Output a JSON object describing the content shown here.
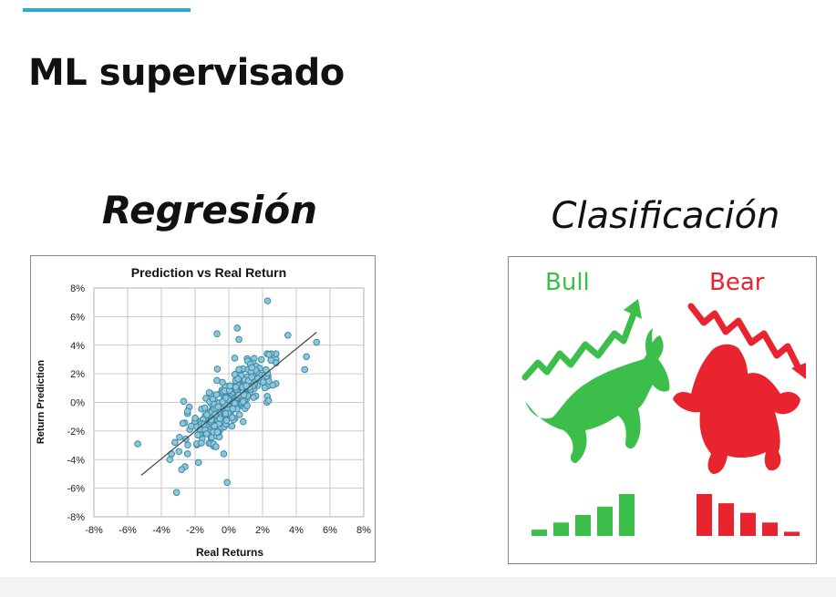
{
  "slide": {
    "title": "ML supervisado",
    "accent_color": "#29a9e0"
  },
  "regression": {
    "heading": "Regresión"
  },
  "classification": {
    "heading": "Clasificación",
    "bull": {
      "label": "Bull",
      "color": "#3cbf4a"
    },
    "bear": {
      "label": "Bear",
      "color": "#e8242f"
    },
    "bull_bars_relative": [
      0.15,
      0.32,
      0.5,
      0.7,
      1.0
    ],
    "bear_bars_relative": [
      1.0,
      0.78,
      0.55,
      0.32,
      0.1
    ]
  },
  "chart_data": {
    "type": "scatter",
    "title": "Prediction vs Real Return",
    "xlabel": "Real Returns",
    "ylabel": "Return Prediction",
    "xlim": [
      -8,
      8
    ],
    "ylim": [
      -8,
      8
    ],
    "x_ticks": [
      "-8%",
      "-6%",
      "-4%",
      "-2%",
      "0%",
      "2%",
      "4%",
      "6%",
      "8%"
    ],
    "y_ticks": [
      "8%",
      "6%",
      "4%",
      "2%",
      "0%",
      "-2%",
      "-4%",
      "-6%",
      "-8%"
    ],
    "grid": true,
    "marker_color": "#8fc6da",
    "marker_edge": "#3b8aa8",
    "trendline": {
      "x": [
        -5.2,
        5.2
      ],
      "y": [
        -5.1,
        4.9
      ]
    },
    "outliers": [
      {
        "x": 2.3,
        "y": 7.1
      },
      {
        "x": 0.5,
        "y": 5.2
      },
      {
        "x": -0.7,
        "y": 4.8
      },
      {
        "x": 0.6,
        "y": 4.4
      },
      {
        "x": 3.5,
        "y": 4.7
      },
      {
        "x": 5.2,
        "y": 4.2
      },
      {
        "x": 4.6,
        "y": 3.2
      },
      {
        "x": 4.5,
        "y": 2.3
      },
      {
        "x": 2.6,
        "y": 1.2
      },
      {
        "x": -5.4,
        "y": -2.9
      },
      {
        "x": -3.1,
        "y": -6.3
      },
      {
        "x": -0.1,
        "y": -5.6
      },
      {
        "x": -3.5,
        "y": -4.0
      },
      {
        "x": -2.6,
        "y": -4.5
      },
      {
        "x": -2.8,
        "y": -4.7
      },
      {
        "x": -1.8,
        "y": -4.2
      },
      {
        "x": -0.3,
        "y": -3.6
      },
      {
        "x": -3.2,
        "y": -2.8
      }
    ],
    "cluster": {
      "n": 320,
      "center_x": 0,
      "center_y": 0,
      "spread_x": 1.3,
      "slope": 0.95,
      "noise_y": 0.9,
      "seed": 7
    }
  }
}
